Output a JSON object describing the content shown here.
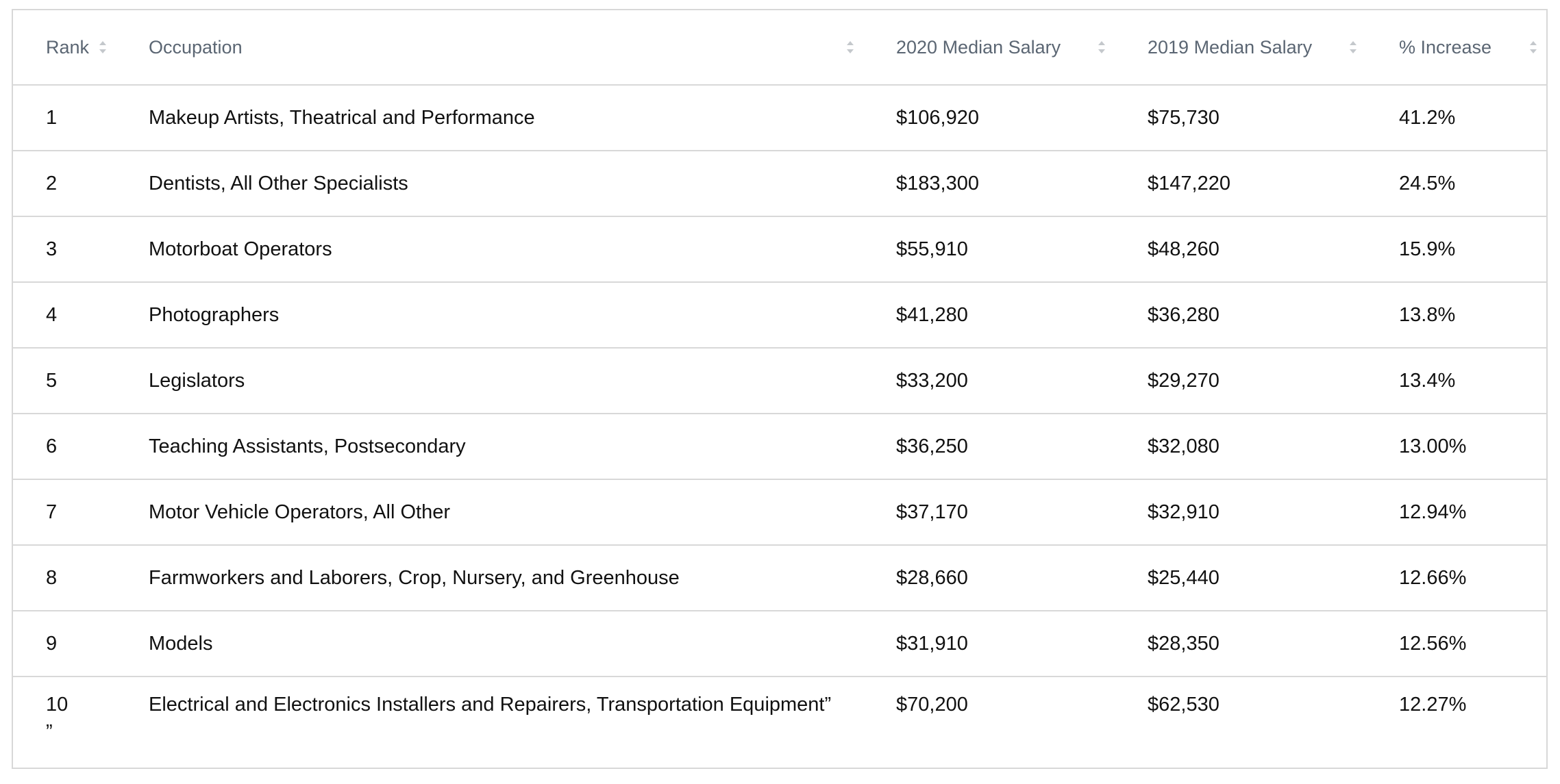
{
  "table": {
    "columns": [
      {
        "label": "Rank"
      },
      {
        "label": "Occupation"
      },
      {
        "label": "2020 Median Salary"
      },
      {
        "label": "2019 Median Salary"
      },
      {
        "label": "% Increase"
      }
    ],
    "rows": [
      {
        "rank": "1",
        "occupation": "Makeup Artists, Theatrical and Performance",
        "salary_2020": "$106,920",
        "salary_2019": "$75,730",
        "increase": "41.2%"
      },
      {
        "rank": "2",
        "occupation": "Dentists, All Other Specialists",
        "salary_2020": "$183,300",
        "salary_2019": "$147,220",
        "increase": "24.5%"
      },
      {
        "rank": "3",
        "occupation": "Motorboat Operators",
        "salary_2020": "$55,910",
        "salary_2019": "$48,260",
        "increase": "15.9%"
      },
      {
        "rank": "4",
        "occupation": "Photographers",
        "salary_2020": "$41,280",
        "salary_2019": "$36,280",
        "increase": "13.8%"
      },
      {
        "rank": "5",
        "occupation": "Legislators",
        "salary_2020": "$33,200",
        "salary_2019": "$29,270",
        "increase": "13.4%"
      },
      {
        "rank": "6",
        "occupation": "Teaching Assistants, Postsecondary",
        "salary_2020": "$36,250",
        "salary_2019": "$32,080",
        "increase": "13.00%"
      },
      {
        "rank": "7",
        "occupation": "Motor Vehicle Operators, All Other",
        "salary_2020": "$37,170",
        "salary_2019": "$32,910",
        "increase": "12.94%"
      },
      {
        "rank": "8",
        "occupation": "Farmworkers and Laborers, Crop, Nursery, and Greenhouse",
        "salary_2020": "$28,660",
        "salary_2019": "$25,440",
        "increase": "12.66%"
      },
      {
        "rank": "9",
        "occupation": "Models",
        "salary_2020": "$31,910",
        "salary_2019": "$28,350",
        "increase": "12.56%"
      },
      {
        "rank": "10",
        "rank_suffix": "”",
        "occupation": "Electrical and Electronics Installers and Repairers, Transportation Equipment”",
        "salary_2020": "$70,200",
        "salary_2019": "$62,530",
        "increase": "12.27%"
      }
    ]
  },
  "icons": {
    "sort": "sort-updown-icon"
  },
  "colors": {
    "header_text": "#5b6673",
    "border": "#d8d8d8",
    "sort_icon": "#c4c8cc"
  }
}
